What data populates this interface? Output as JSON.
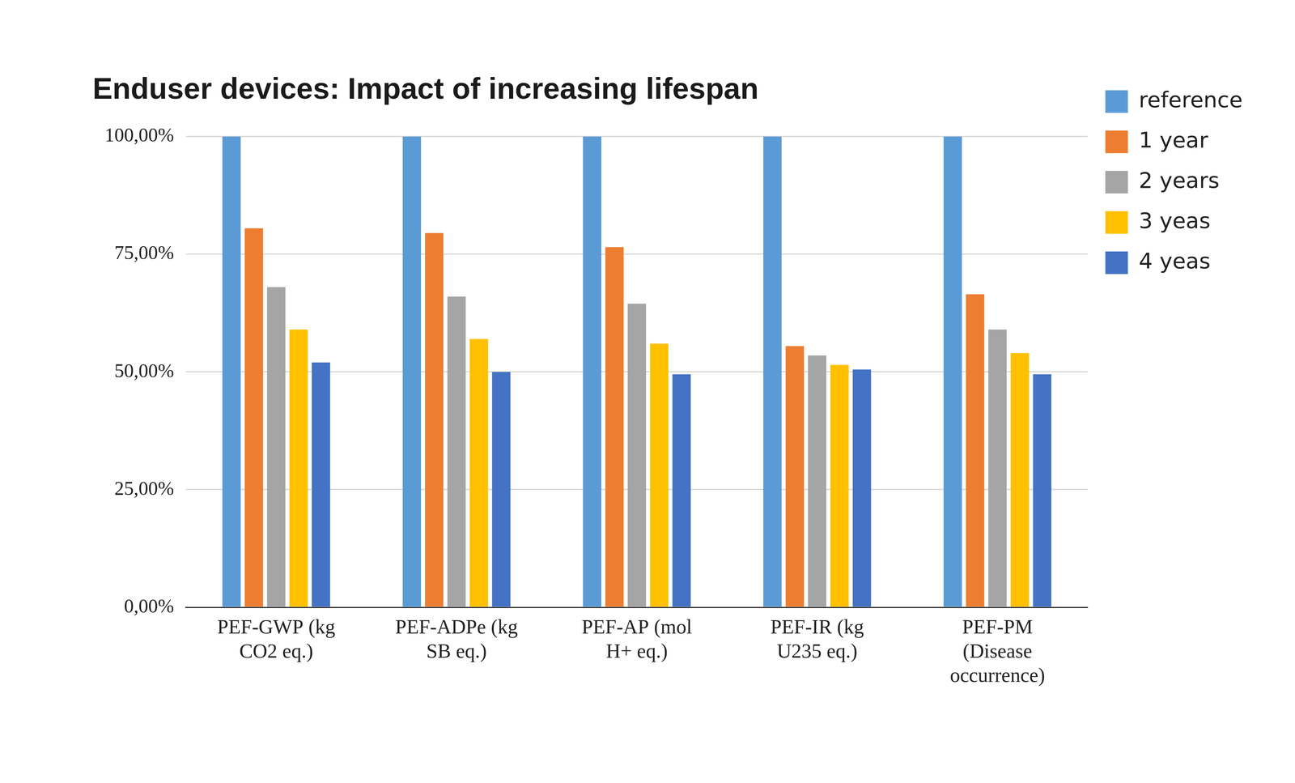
{
  "chart_data": {
    "type": "bar",
    "title": "Enduser devices: Impact of increasing lifespan",
    "categories": [
      [
        "PEF-GWP (kg",
        "CO2 eq.)"
      ],
      [
        "PEF-ADPe (kg",
        "SB eq.)"
      ],
      [
        "PEF-AP (mol",
        "H+ eq.)"
      ],
      [
        "PEF-IR (kg",
        "U235 eq.)"
      ],
      [
        "PEF-PM",
        "(Disease",
        "occurrence)"
      ]
    ],
    "series": [
      {
        "name": "reference",
        "color": "#5b9bd5",
        "values": [
          100,
          100,
          100,
          100,
          100
        ]
      },
      {
        "name": "1 year",
        "color": "#ed7d31",
        "values": [
          80.5,
          79.5,
          76.5,
          55.5,
          66.5
        ]
      },
      {
        "name": "2 years",
        "color": "#a5a5a5",
        "values": [
          68,
          66,
          64.5,
          53.5,
          59
        ]
      },
      {
        "name": "3 yeas",
        "color": "#ffc000",
        "values": [
          59,
          57,
          56,
          51.5,
          54
        ]
      },
      {
        "name": "4 yeas",
        "color": "#4472c4",
        "values": [
          52,
          50,
          49.5,
          50.5,
          49.5
        ]
      }
    ],
    "ylim": [
      0,
      100
    ],
    "yticks": [
      {
        "value": 0,
        "label": "0,00%"
      },
      {
        "value": 25,
        "label": "25,00%"
      },
      {
        "value": 50,
        "label": "50,00%"
      },
      {
        "value": 75,
        "label": "75,00%"
      },
      {
        "value": 100,
        "label": "100,00%"
      }
    ],
    "grid": true,
    "legend": "right"
  }
}
